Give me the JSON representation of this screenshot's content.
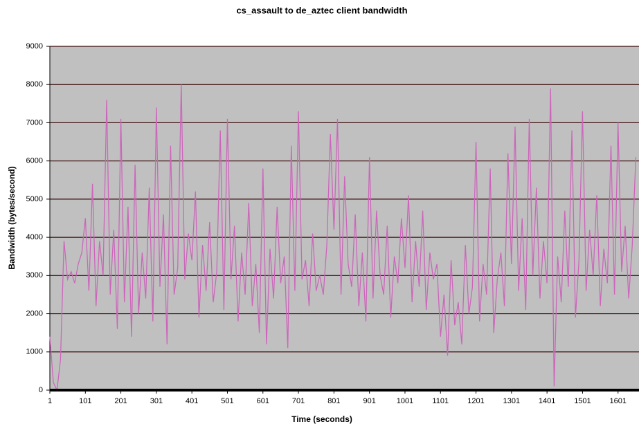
{
  "chart_data": {
    "type": "line",
    "title": "cs_assault to de_aztec client bandwidth",
    "x_label": "Time (seconds)",
    "y_label": "Bandwidth (bytes/second)",
    "x": [
      1,
      11,
      21,
      31,
      41,
      51,
      61,
      71,
      81,
      91,
      101,
      111,
      121,
      131,
      141,
      151,
      161,
      171,
      181,
      191,
      201,
      211,
      221,
      231,
      241,
      251,
      261,
      271,
      281,
      291,
      301,
      311,
      321,
      331,
      341,
      351,
      361,
      371,
      381,
      391,
      401,
      411,
      421,
      431,
      441,
      451,
      461,
      471,
      481,
      491,
      501,
      511,
      521,
      531,
      541,
      551,
      561,
      571,
      581,
      591,
      601,
      611,
      621,
      631,
      641,
      651,
      661,
      671,
      681,
      691,
      701,
      711,
      721,
      731,
      741,
      751,
      761,
      771,
      781,
      791,
      801,
      811,
      821,
      831,
      841,
      851,
      861,
      871,
      881,
      891,
      901,
      911,
      921,
      931,
      941,
      951,
      961,
      971,
      981,
      991,
      1001,
      1011,
      1021,
      1031,
      1041,
      1051,
      1061,
      1071,
      1081,
      1091,
      1101,
      1111,
      1121,
      1131,
      1141,
      1151,
      1161,
      1171,
      1181,
      1191,
      1201,
      1211,
      1221,
      1231,
      1241,
      1251,
      1261,
      1271,
      1281,
      1291,
      1301,
      1311,
      1321,
      1331,
      1341,
      1351,
      1361,
      1371,
      1381,
      1391,
      1401,
      1411,
      1421,
      1431,
      1441,
      1451,
      1461,
      1471,
      1481,
      1491,
      1501,
      1511,
      1521,
      1531,
      1541,
      1551,
      1561,
      1571,
      1581,
      1591,
      1601,
      1611,
      1621,
      1631,
      1641,
      1651
    ],
    "series": [
      {
        "name": "Bandwidth",
        "color": "#cc66bb",
        "values": [
          1400,
          200,
          0,
          800,
          3900,
          2900,
          3100,
          2800,
          3300,
          3600,
          4500,
          2600,
          5400,
          2200,
          3900,
          3000,
          7600,
          2500,
          4200,
          1600,
          7100,
          2300,
          4800,
          1400,
          5900,
          2000,
          3600,
          2400,
          5300,
          1800,
          7400,
          2700,
          4600,
          1200,
          6400,
          2500,
          3200,
          8000,
          2900,
          4100,
          3400,
          5200,
          1900,
          3800,
          2600,
          4400,
          2300,
          3100,
          6800,
          2100,
          7100,
          2900,
          4300,
          1800,
          3600,
          2500,
          4900,
          2200,
          3300,
          1500,
          5800,
          1200,
          3700,
          2400,
          4800,
          2800,
          3500,
          1100,
          6400,
          2600,
          7300,
          2900,
          3400,
          2200,
          4100,
          2600,
          3000,
          2500,
          3800,
          6700,
          4200,
          7100,
          2500,
          5600,
          3300,
          2700,
          4600,
          2200,
          3600,
          1800,
          6100,
          2400,
          4700,
          3000,
          2500,
          4300,
          1900,
          3500,
          2800,
          4500,
          3200,
          5100,
          2300,
          3900,
          2700,
          4700,
          2100,
          3600,
          2900,
          3300,
          1400,
          2500,
          900,
          3400,
          1700,
          2300,
          1200,
          3800,
          2000,
          2700,
          6500,
          1800,
          3300,
          2500,
          5800,
          1500,
          2900,
          3600,
          2200,
          6200,
          3300,
          6900,
          2600,
          4500,
          2100,
          7100,
          3000,
          5300,
          2400,
          3900,
          2800,
          7900,
          100,
          3500,
          2300,
          4700,
          2700,
          6800,
          1900,
          3400,
          7300,
          2600,
          4200,
          3000,
          5100,
          2200,
          3700,
          2800,
          6400,
          2500,
          7000,
          3100,
          4300,
          2400,
          3800,
          6100
        ]
      }
    ],
    "xlim": [
      1,
      1660
    ],
    "xticks": [
      1,
      101,
      201,
      301,
      401,
      501,
      601,
      701,
      801,
      901,
      1001,
      1101,
      1201,
      1301,
      1401,
      1501,
      1601
    ],
    "ylim": [
      0,
      9000
    ],
    "yticks": [
      0,
      1000,
      2000,
      3000,
      4000,
      5000,
      6000,
      7000,
      8000,
      9000
    ],
    "grid": true
  }
}
